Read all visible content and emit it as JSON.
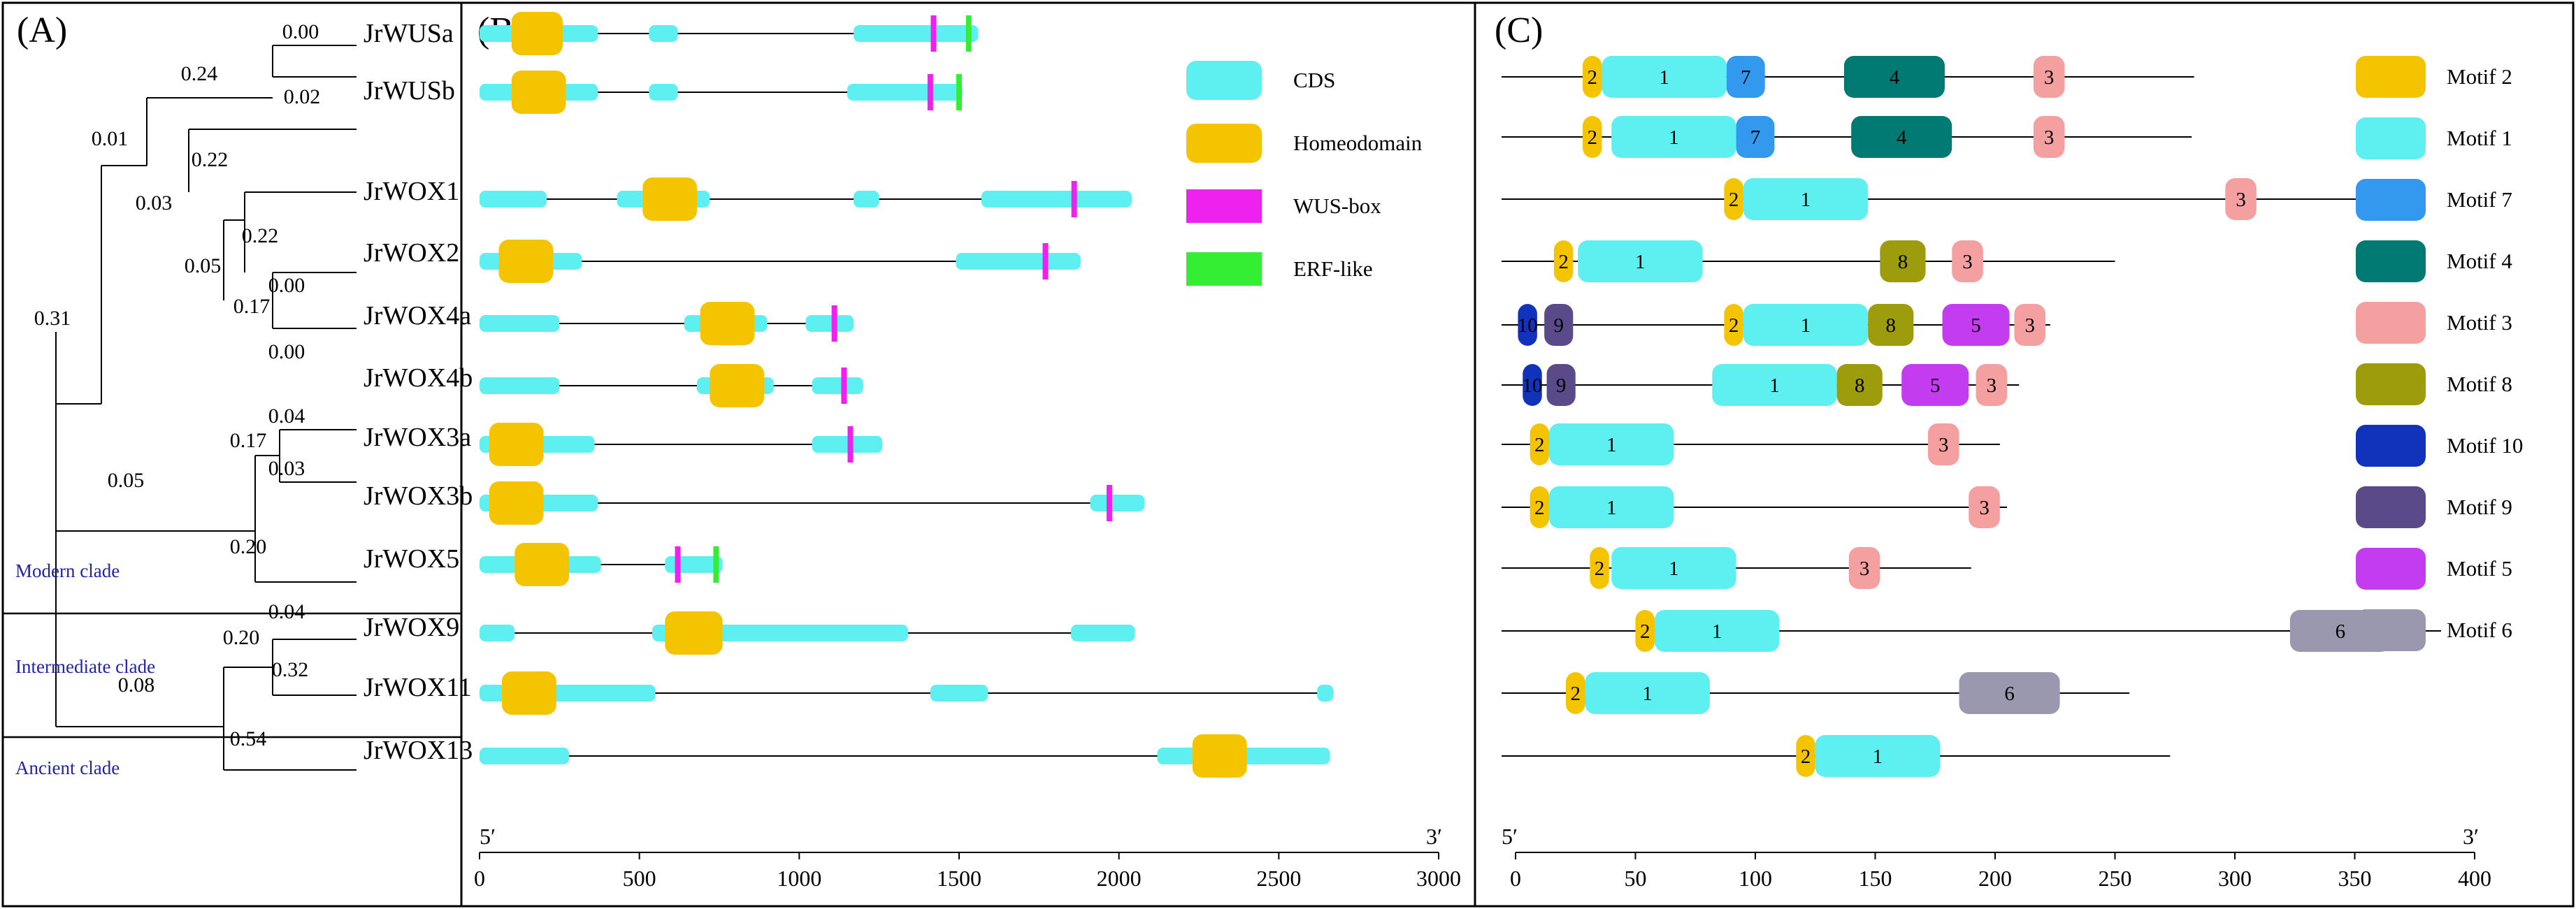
{
  "panels": {
    "A": "(A)",
    "B": "(B)",
    "C": "(C)"
  },
  "genes": [
    "JrWUSa",
    "JrWUSb",
    "JrWOX1",
    "JrWOX2",
    "JrWOX4a",
    "JrWOX4b",
    "JrWOX3a",
    "JrWOX3b",
    "JrWOX5",
    "JrWOX9",
    "JrWOX11",
    "JrWOX13"
  ],
  "branch_lengths": [
    {
      "value": "0.00",
      "pos": "above-WUSa"
    },
    {
      "value": "0.24",
      "pos": "WUS-clade"
    },
    {
      "value": "0.02",
      "pos": "WUSb"
    },
    {
      "value": "0.01",
      "pos": "node-WUS-WOX1-2"
    },
    {
      "value": "0.22",
      "pos": "WOX1"
    },
    {
      "value": "0.03",
      "pos": "node-WOX1-rest"
    },
    {
      "value": "0.22",
      "pos": "WOX2"
    },
    {
      "value": "0.05",
      "pos": "node-WOX2-rest"
    },
    {
      "value": "0.00",
      "pos": "WOX4a"
    },
    {
      "value": "0.17",
      "pos": "WOX4-clade"
    },
    {
      "value": "0.00",
      "pos": "WOX4b"
    },
    {
      "value": "0.31",
      "pos": "root-modern"
    },
    {
      "value": "0.04",
      "pos": "WOX3a"
    },
    {
      "value": "0.17",
      "pos": "WOX3-clade"
    },
    {
      "value": "0.03",
      "pos": "WOX3b"
    },
    {
      "value": "0.05",
      "pos": "node-WOX3-5"
    },
    {
      "value": "0.20",
      "pos": "WOX5"
    },
    {
      "value": "0.04",
      "pos": "WOX9"
    },
    {
      "value": "0.20",
      "pos": "node-WOX9-11"
    },
    {
      "value": "0.32",
      "pos": "WOX11"
    },
    {
      "value": "0.08",
      "pos": "node-intermediate"
    },
    {
      "value": "0.54",
      "pos": "WOX13"
    }
  ],
  "clades": [
    "Modern clade",
    "Intermediate clade",
    "Ancient clade"
  ],
  "legend_B": [
    {
      "label": "CDS",
      "color": "#5ef0f0"
    },
    {
      "label": "Homeodomain",
      "color": "#f5c400"
    },
    {
      "label": "WUS-box",
      "color": "#ee22ee"
    },
    {
      "label": "ERF-like",
      "color": "#33ee33"
    }
  ],
  "legend_C": [
    {
      "label": "Motif 2",
      "color": "#f5c400"
    },
    {
      "label": "Motif 1",
      "color": "#5ef0f0"
    },
    {
      "label": "Motif 7",
      "color": "#3399ee"
    },
    {
      "label": "Motif 4",
      "color": "#007a73"
    },
    {
      "label": "Motif 3",
      "color": "#f4a0a0"
    },
    {
      "label": "Motif 8",
      "color": "#9c9c0c"
    },
    {
      "label": "Motif 10",
      "color": "#1133bb"
    },
    {
      "label": "Motif 9",
      "color": "#5a4a8a"
    },
    {
      "label": "Motif 5",
      "color": "#c43cf0"
    },
    {
      "label": "Motif 6",
      "color": "#9a98ae"
    }
  ],
  "axis_B": {
    "ticks": [
      "0",
      "500",
      "1000",
      "1500",
      "2000",
      "2500",
      "3000"
    ],
    "end5": "5′",
    "end3": "3′"
  },
  "axis_C": {
    "ticks": [
      "0",
      "50",
      "100",
      "150",
      "200",
      "250",
      "300",
      "350",
      "400"
    ],
    "end5": "5′",
    "end3": "3′"
  },
  "chart_data": {
    "type": "gene-structure",
    "gene_structure_bp": [
      {
        "gene": "JrWUSa",
        "length": 1560,
        "cds": [
          [
            0,
            370
          ],
          [
            530,
            620
          ],
          [
            1170,
            1560
          ]
        ],
        "homeodomain": [
          [
            100,
            260
          ]
        ],
        "wus_box": [
          1420
        ],
        "erf": [
          1530
        ]
      },
      {
        "gene": "JrWUSb",
        "length": 1510,
        "cds": [
          [
            0,
            370
          ],
          [
            530,
            620
          ],
          [
            1150,
            1510
          ]
        ],
        "homeodomain": [
          [
            100,
            270
          ]
        ],
        "wus_box": [
          1410
        ],
        "erf": [
          1500
        ]
      },
      {
        "gene": "JrWOX1",
        "length": 2040,
        "cds": [
          [
            0,
            210
          ],
          [
            430,
            720
          ],
          [
            1170,
            1250
          ],
          [
            1570,
            2040
          ]
        ],
        "homeodomain": [
          [
            510,
            680
          ]
        ],
        "wus_box": [
          1860
        ],
        "erf": []
      },
      {
        "gene": "JrWOX2",
        "length": 1880,
        "cds": [
          [
            0,
            320
          ],
          [
            1490,
            1880
          ]
        ],
        "homeodomain": [
          [
            60,
            230
          ]
        ],
        "wus_box": [
          1770
        ],
        "erf": []
      },
      {
        "gene": "JrWOX4a",
        "length": 1170,
        "cds": [
          [
            0,
            250
          ],
          [
            640,
            900
          ],
          [
            1020,
            1170
          ]
        ],
        "homeodomain": [
          [
            690,
            860
          ]
        ],
        "wus_box": [
          1110
        ],
        "erf": []
      },
      {
        "gene": "JrWOX4b",
        "length": 1200,
        "cds": [
          [
            0,
            250
          ],
          [
            680,
            920
          ],
          [
            1040,
            1200
          ]
        ],
        "homeodomain": [
          [
            720,
            890
          ]
        ],
        "wus_box": [
          1140
        ],
        "erf": []
      },
      {
        "gene": "JrWOX3a",
        "length": 1260,
        "cds": [
          [
            0,
            360
          ],
          [
            1040,
            1260
          ]
        ],
        "homeodomain": [
          [
            30,
            200
          ]
        ],
        "wus_box": [
          1160
        ],
        "erf": []
      },
      {
        "gene": "JrWOX3b",
        "length": 2080,
        "cds": [
          [
            0,
            370
          ],
          [
            1910,
            2080
          ]
        ],
        "homeodomain": [
          [
            30,
            200
          ]
        ],
        "wus_box": [
          1970
        ],
        "erf": []
      },
      {
        "gene": "JrWOX5",
        "length": 760,
        "cds": [
          [
            0,
            380
          ],
          [
            580,
            760
          ]
        ],
        "homeodomain": [
          [
            110,
            280
          ]
        ],
        "wus_box": [
          620
        ],
        "erf": [
          740
        ]
      },
      {
        "gene": "JrWOX9",
        "length": 2050,
        "cds": [
          [
            0,
            110
          ],
          [
            540,
            1340
          ],
          [
            1850,
            2050
          ]
        ],
        "homeodomain": [
          [
            580,
            760
          ]
        ],
        "wus_box": [],
        "erf": []
      },
      {
        "gene": "JrWOX11",
        "length": 2670,
        "cds": [
          [
            0,
            550
          ],
          [
            1410,
            1590
          ],
          [
            2620,
            2670
          ]
        ],
        "homeodomain": [
          [
            70,
            240
          ]
        ],
        "wus_box": [],
        "erf": []
      },
      {
        "gene": "JrWOX13",
        "length": 2660,
        "cds": [
          [
            0,
            280
          ],
          [
            2120,
            2660
          ]
        ],
        "homeodomain": [
          [
            2230,
            2400
          ]
        ],
        "wus_box": [],
        "erf": []
      }
    ],
    "motifs_aa": [
      {
        "gene": "JrWUSa",
        "length": 283,
        "motifs": [
          {
            "m": "2",
            "s": 28,
            "e": 36
          },
          {
            "m": "1",
            "s": 36,
            "e": 88
          },
          {
            "m": "7",
            "s": 88,
            "e": 104
          },
          {
            "m": "4",
            "s": 137,
            "e": 179
          },
          {
            "m": "3",
            "s": 216,
            "e": 229
          }
        ]
      },
      {
        "gene": "JrWUSb",
        "length": 282,
        "motifs": [
          {
            "m": "2",
            "s": 28,
            "e": 36
          },
          {
            "m": "1",
            "s": 40,
            "e": 92
          },
          {
            "m": "7",
            "s": 92,
            "e": 108
          },
          {
            "m": "4",
            "s": 140,
            "e": 182
          },
          {
            "m": "3",
            "s": 216,
            "e": 229
          }
        ]
      },
      {
        "gene": "JrWOX1",
        "length": 360,
        "motifs": [
          {
            "m": "2",
            "s": 87,
            "e": 95
          },
          {
            "m": "1",
            "s": 95,
            "e": 147
          },
          {
            "m": "3",
            "s": 296,
            "e": 309
          }
        ]
      },
      {
        "gene": "JrWOX2",
        "length": 250,
        "motifs": [
          {
            "m": "2",
            "s": 16,
            "e": 24
          },
          {
            "m": "1",
            "s": 26,
            "e": 78
          },
          {
            "m": "8",
            "s": 152,
            "e": 171
          },
          {
            "m": "3",
            "s": 182,
            "e": 195
          }
        ]
      },
      {
        "gene": "JrWOX4a",
        "length": 223,
        "motifs": [
          {
            "m": "10",
            "s": 1,
            "e": 9
          },
          {
            "m": "9",
            "s": 12,
            "e": 24
          },
          {
            "m": "2",
            "s": 87,
            "e": 95
          },
          {
            "m": "1",
            "s": 95,
            "e": 147
          },
          {
            "m": "8",
            "s": 147,
            "e": 166
          },
          {
            "m": "5",
            "s": 178,
            "e": 206
          },
          {
            "m": "3",
            "s": 208,
            "e": 221
          }
        ]
      },
      {
        "gene": "JrWOX4b",
        "length": 210,
        "motifs": [
          {
            "m": "10",
            "s": 3,
            "e": 11
          },
          {
            "m": "9",
            "s": 13,
            "e": 25
          },
          {
            "m": "1",
            "s": 82,
            "e": 134
          },
          {
            "m": "8",
            "s": 134,
            "e": 153
          },
          {
            "m": "5",
            "s": 161,
            "e": 189
          },
          {
            "m": "3",
            "s": 192,
            "e": 205
          }
        ]
      },
      {
        "gene": "JrWOX3a",
        "length": 202,
        "motifs": [
          {
            "m": "2",
            "s": 6,
            "e": 14
          },
          {
            "m": "1",
            "s": 14,
            "e": 66
          },
          {
            "m": "3",
            "s": 172,
            "e": 185
          }
        ]
      },
      {
        "gene": "JrWOX3b",
        "length": 205,
        "motifs": [
          {
            "m": "2",
            "s": 6,
            "e": 14
          },
          {
            "m": "1",
            "s": 14,
            "e": 66
          },
          {
            "m": "3",
            "s": 189,
            "e": 202
          }
        ]
      },
      {
        "gene": "JrWOX5",
        "length": 190,
        "motifs": [
          {
            "m": "2",
            "s": 31,
            "e": 39
          },
          {
            "m": "1",
            "s": 40,
            "e": 92
          },
          {
            "m": "3",
            "s": 139,
            "e": 152
          }
        ]
      },
      {
        "gene": "JrWOX9",
        "length": 386,
        "motifs": [
          {
            "m": "2",
            "s": 50,
            "e": 58
          },
          {
            "m": "1",
            "s": 58,
            "e": 110
          },
          {
            "m": "6",
            "s": 323,
            "e": 365
          }
        ]
      },
      {
        "gene": "JrWOX11",
        "length": 256,
        "motifs": [
          {
            "m": "2",
            "s": 21,
            "e": 29
          },
          {
            "m": "1",
            "s": 29,
            "e": 81
          },
          {
            "m": "6",
            "s": 185,
            "e": 227
          }
        ]
      },
      {
        "gene": "JrWOX13",
        "length": 273,
        "motifs": [
          {
            "m": "2",
            "s": 117,
            "e": 125
          },
          {
            "m": "1",
            "s": 125,
            "e": 177
          }
        ]
      }
    ]
  }
}
